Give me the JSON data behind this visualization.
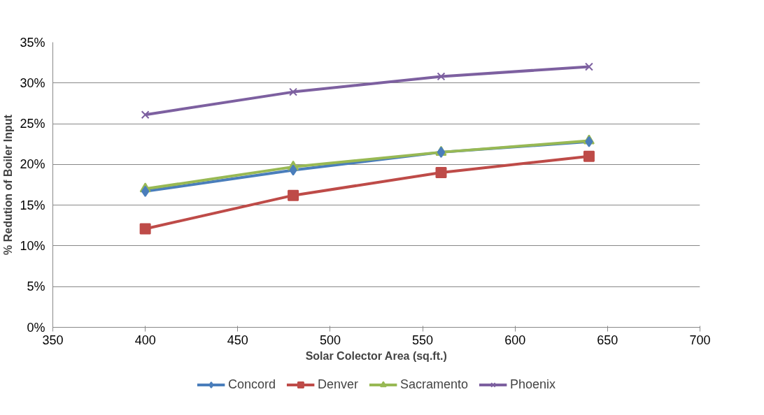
{
  "chart_data": {
    "type": "line",
    "xlabel": "Solar Colector Area (sq.ft.)",
    "ylabel": "% Redution of Boiler Input",
    "xlim": [
      350,
      700
    ],
    "xticks": [
      350,
      400,
      450,
      500,
      550,
      600,
      650,
      700
    ],
    "ylim": [
      0,
      0.35
    ],
    "yticks": [
      {
        "value": 0,
        "label": "0%"
      },
      {
        "value": 0.05,
        "label": "5%"
      },
      {
        "value": 0.1,
        "label": "10%"
      },
      {
        "value": 0.15,
        "label": "15%"
      },
      {
        "value": 0.2,
        "label": "20%"
      },
      {
        "value": 0.25,
        "label": "25%"
      },
      {
        "value": 0.3,
        "label": "30%"
      },
      {
        "value": 0.35,
        "label": "35%"
      }
    ],
    "grid": "y",
    "legend": "bottom",
    "x": [
      400,
      480,
      560,
      640
    ],
    "series": [
      {
        "name": "Concord",
        "color": "#4a7ebb",
        "marker": "diamond",
        "values": [
          0.167,
          0.193,
          0.215,
          0.228
        ]
      },
      {
        "name": "Denver",
        "color": "#be4b48",
        "marker": "square",
        "values": [
          0.121,
          0.162,
          0.19,
          0.21
        ]
      },
      {
        "name": "Sacramento",
        "color": "#98b954",
        "marker": "triangle",
        "values": [
          0.17,
          0.197,
          0.215,
          0.229
        ]
      },
      {
        "name": "Phoenix",
        "color": "#7d60a0",
        "marker": "cross",
        "values": [
          0.261,
          0.289,
          0.308,
          0.32
        ]
      }
    ]
  }
}
